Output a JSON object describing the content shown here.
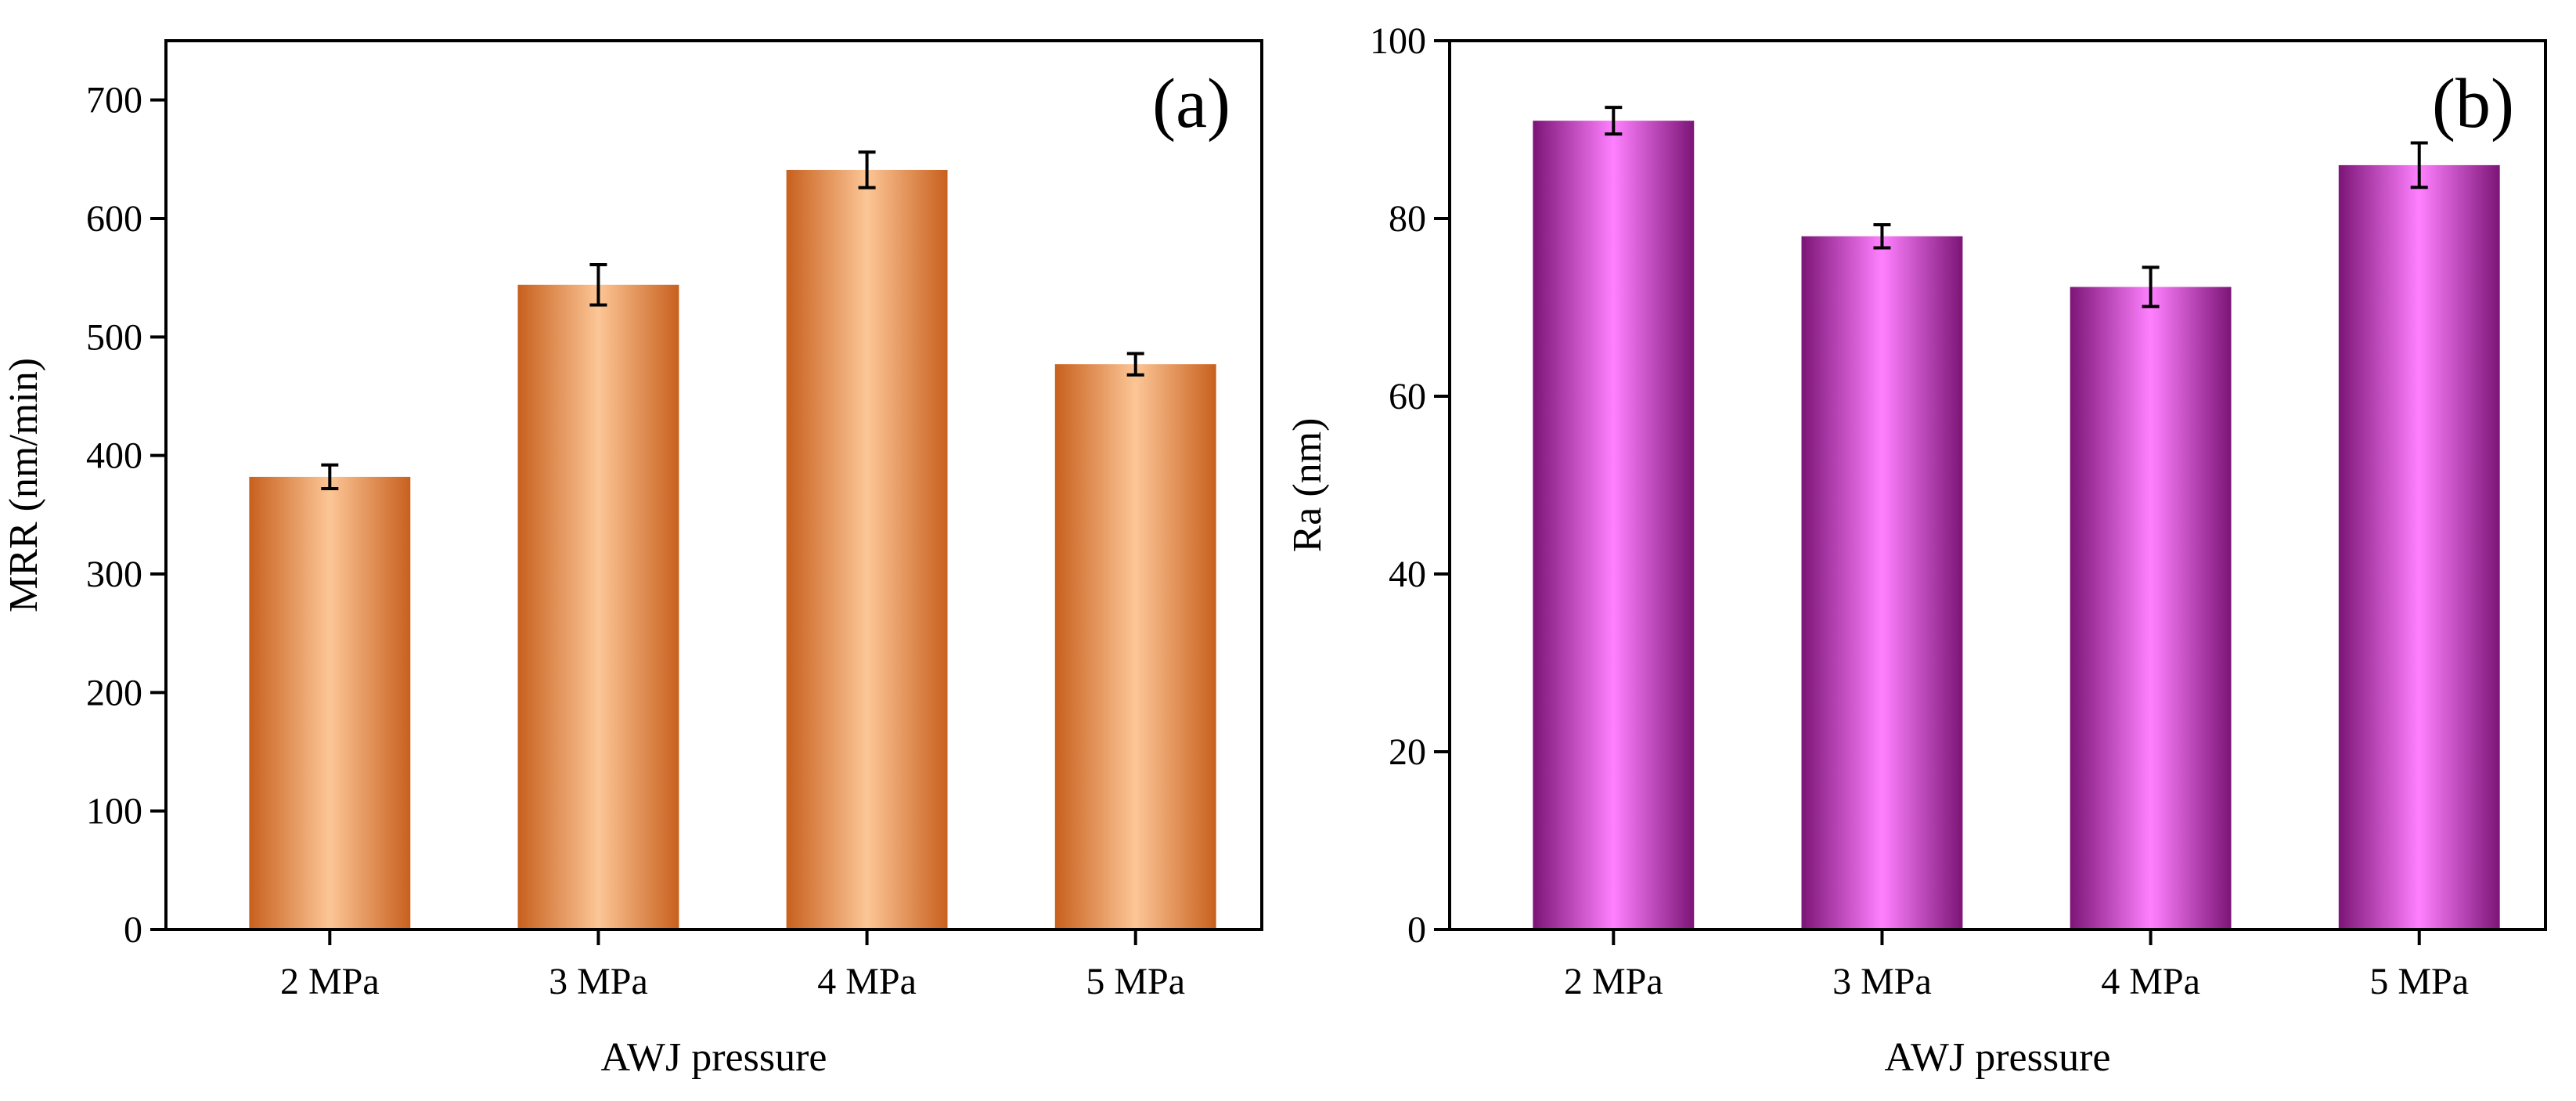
{
  "chart_data": [
    {
      "type": "bar",
      "panel": "(a)",
      "categories": [
        "2 MPa",
        "3 MPa",
        "4 MPa",
        "5 MPa"
      ],
      "values": [
        382,
        544,
        641,
        477
      ],
      "errors": [
        10,
        17,
        15,
        9
      ],
      "xlabel": "AWJ pressure",
      "ylabel": "MRR (nm/min)",
      "ylim": [
        0,
        750
      ],
      "yticks": [
        0,
        100,
        200,
        300,
        400,
        500,
        600,
        700
      ],
      "colors": {
        "edge": "#c8601e",
        "center": "#fcc696"
      }
    },
    {
      "type": "bar",
      "panel": "(b)",
      "categories": [
        "2 MPa",
        "3 MPa",
        "4 MPa",
        "5 MPa"
      ],
      "values": [
        91,
        78,
        72.3,
        86
      ],
      "errors": [
        1.5,
        1.3,
        2.2,
        2.5
      ],
      "xlabel": "AWJ pressure",
      "ylabel": "Ra (nm)",
      "ylim": [
        0,
        100
      ],
      "yticks": [
        0,
        20,
        40,
        60,
        80,
        100
      ],
      "colors": {
        "edge": "#7c1577",
        "center": "#ff80ff"
      }
    }
  ]
}
